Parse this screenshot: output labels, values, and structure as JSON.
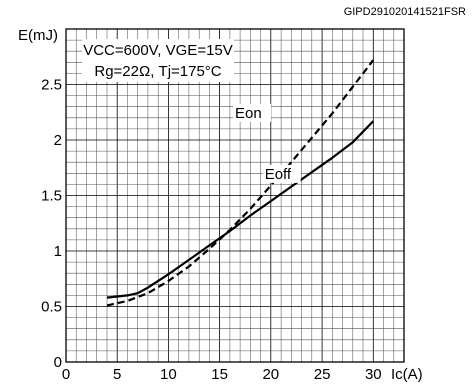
{
  "doc_id": "GIPD291020141521FSR",
  "chart_data": {
    "type": "line",
    "xlabel": "Ic(A)",
    "ylabel": "E(mJ)",
    "xlim": [
      0,
      33
    ],
    "ylim": [
      0,
      3.0
    ],
    "x_ticks": [
      0,
      5,
      10,
      15,
      20,
      25,
      30
    ],
    "y_ticks": [
      0,
      0.5,
      1,
      1.5,
      2,
      2.5
    ],
    "y_tick_labels": [
      "0",
      "0.5",
      "1",
      "1.5",
      "2",
      "2.5"
    ],
    "grid": true,
    "conditions": [
      "VCC=600V,  VGE=15V",
      "Rg=22Ω,  Tj=175°C"
    ],
    "series": [
      {
        "name": "Eon",
        "style": "dashed",
        "color": "#000000",
        "x": [
          4,
          6,
          8,
          10,
          12,
          14,
          16,
          18,
          20,
          22,
          24,
          26,
          28,
          30
        ],
        "y": [
          0.51,
          0.55,
          0.62,
          0.73,
          0.86,
          1.02,
          1.19,
          1.38,
          1.59,
          1.8,
          2.02,
          2.24,
          2.48,
          2.72
        ]
      },
      {
        "name": "Eoff",
        "style": "solid",
        "color": "#000000",
        "x": [
          4,
          6,
          7,
          8,
          10,
          12,
          14,
          16,
          18,
          20,
          22,
          24,
          26,
          28,
          30
        ],
        "y": [
          0.58,
          0.6,
          0.62,
          0.67,
          0.79,
          0.92,
          1.05,
          1.18,
          1.32,
          1.45,
          1.58,
          1.71,
          1.84,
          1.98,
          2.17
        ]
      }
    ]
  }
}
